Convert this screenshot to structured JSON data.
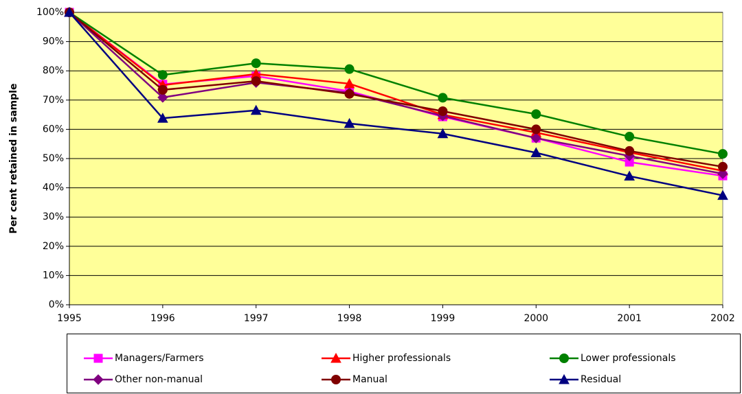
{
  "chart_data": {
    "type": "line",
    "y_label": "Per cent retained in sample",
    "x": [
      1995,
      1996,
      1997,
      1998,
      1999,
      2000,
      2001,
      2002
    ],
    "xlim": [
      1995,
      2002
    ],
    "xticks": [
      1995,
      1996,
      1997,
      1998,
      1999,
      2000,
      2001,
      2002
    ],
    "ylim": [
      0,
      100
    ],
    "yticks": [
      {
        "value": 0,
        "label": "0%"
      },
      {
        "value": 10,
        "label": "10%"
      },
      {
        "value": 20,
        "label": "20%"
      },
      {
        "value": 30,
        "label": "30%"
      },
      {
        "value": 40,
        "label": "40%"
      },
      {
        "value": 50,
        "label": "50%"
      },
      {
        "value": 60,
        "label": "60%"
      },
      {
        "value": 70,
        "label": "70%"
      },
      {
        "value": 80,
        "label": "80%"
      },
      {
        "value": 90,
        "label": "90%"
      },
      {
        "value": 100,
        "label": "100%"
      }
    ],
    "grid": true,
    "plot_background": "#ffff99",
    "series": [
      {
        "name": "Managers/Farmers",
        "color": "#ff00ff",
        "marker": "square",
        "values": [
          100,
          75.4,
          78.2,
          73,
          64.3,
          57,
          48.8,
          44.1
        ]
      },
      {
        "name": "Higher professionals",
        "color": "#ff0000",
        "marker": "triangle",
        "values": [
          100,
          75.1,
          78.9,
          75.6,
          65,
          58.9,
          52.1,
          45.8
        ]
      },
      {
        "name": "Lower professionals",
        "color": "#008000",
        "marker": "circle",
        "values": [
          100,
          78.6,
          82.6,
          80.6,
          70.8,
          65.2,
          57.5,
          51.6
        ]
      },
      {
        "name": "Other non-manual",
        "color": "#800080",
        "marker": "diamond",
        "values": [
          100,
          70.9,
          76,
          72.5,
          64.6,
          57,
          50.9,
          44.8
        ]
      },
      {
        "name": "Manual",
        "color": "#800000",
        "marker": "circle",
        "values": [
          100,
          73.5,
          76.5,
          72.1,
          66.2,
          60,
          52.6,
          47.2
        ]
      },
      {
        "name": "Residual",
        "color": "#000080",
        "marker": "triangle",
        "values": [
          100,
          63.8,
          66.5,
          62,
          58.5,
          52,
          44,
          37.4
        ]
      }
    ]
  }
}
